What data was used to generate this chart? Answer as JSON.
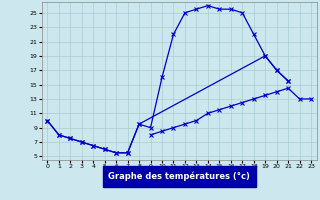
{
  "xlabel": "Graphe des températures (°c)",
  "background_color": "#cce8ee",
  "grid_color": "#aacccc",
  "line_color": "#0000cc",
  "xlim": [
    -0.5,
    23.5
  ],
  "ylim": [
    4.5,
    26.5
  ],
  "xticks": [
    0,
    1,
    2,
    3,
    4,
    5,
    6,
    7,
    8,
    9,
    10,
    11,
    12,
    13,
    14,
    15,
    16,
    17,
    18,
    19,
    20,
    21,
    22,
    23
  ],
  "yticks": [
    5,
    7,
    9,
    11,
    13,
    15,
    17,
    19,
    21,
    23,
    25
  ],
  "curves": [
    {
      "x": [
        0,
        1,
        2,
        3,
        4,
        5,
        6,
        7,
        8,
        9,
        10,
        11,
        12,
        13,
        14,
        15,
        16,
        17,
        18,
        19,
        20,
        21
      ],
      "y": [
        10,
        8,
        7.5,
        7,
        6.5,
        6,
        5.5,
        5.5,
        9.5,
        9,
        16,
        22,
        25,
        25.5,
        26,
        25.5,
        25.5,
        25,
        22,
        19,
        17,
        15.5
      ]
    },
    {
      "x": [
        0,
        1,
        2,
        3,
        4,
        5,
        6,
        7,
        8,
        19,
        20,
        21
      ],
      "y": [
        10,
        8,
        7.5,
        7,
        6.5,
        6,
        5.5,
        5.5,
        9.5,
        19,
        17,
        15.5
      ]
    },
    {
      "x": [
        9,
        10,
        11,
        12,
        13,
        14,
        15,
        16,
        17,
        18,
        19,
        20,
        21,
        22,
        23
      ],
      "y": [
        8,
        8.5,
        9,
        9.5,
        10,
        11,
        11.5,
        12,
        12.5,
        13,
        13.5,
        14,
        14.5,
        13,
        13
      ]
    }
  ]
}
